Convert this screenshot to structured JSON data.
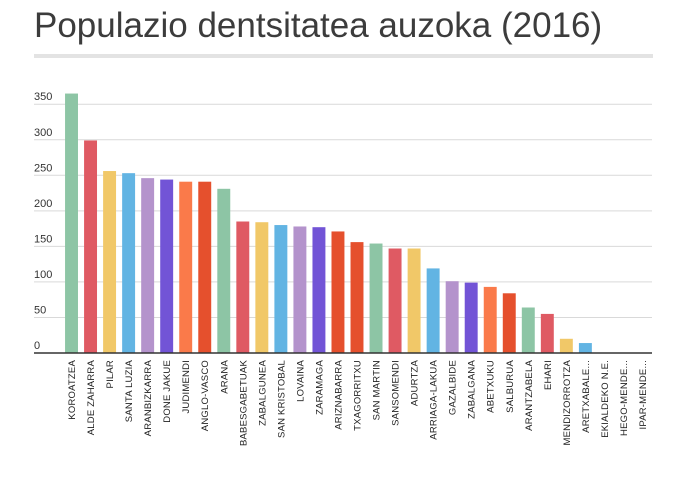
{
  "title": "Populazio dentsitatea auzoka (2016)",
  "chart_data": {
    "type": "bar",
    "title": "Populazio dentsitatea auzoka (2016)",
    "xlabel": "",
    "ylabel": "",
    "ylim": [
      0,
      370
    ],
    "yticks": [
      0,
      50,
      100,
      150,
      200,
      250,
      300,
      350
    ],
    "grid": true,
    "legend": "none",
    "categories": [
      "KOROATZEA",
      "ALDE ZAHARRA",
      "PILAR",
      "SANTA LUZIA",
      "ARANBIZKARRA",
      "DONE JAKUE",
      "JUDIMENDI",
      "ANGLO-VASCO",
      "ARANA",
      "BABESGABETUAK",
      "ZABALGUNEA",
      "SAN KRISTOBAL",
      "LOVAINA",
      "ZARAMAGA",
      "ARIZNABARRA",
      "TXAGORRITXU",
      "SAN MARTIN",
      "SANSOMENDI",
      "ADURTZA",
      "ARRIAGA-LAKUA",
      "GAZALBIDE",
      "ZABALGANA",
      "ABETXUKU",
      "SALBURUA",
      "ARANTZABELA",
      "EHARI",
      "MENDIZORROTZA",
      "ARETXABALE...",
      "EKIALDEKO N.E.",
      "HEGO-MENDE...",
      "IPAR-MENDE..."
    ],
    "values": [
      365,
      299,
      256,
      253,
      246,
      244,
      241,
      241,
      231,
      185,
      184,
      180,
      178,
      177,
      171,
      156,
      154,
      147,
      147,
      119,
      101,
      99,
      93,
      84,
      64,
      55,
      20,
      14,
      0,
      0,
      0
    ],
    "colors": [
      "#8dc5a5",
      "#df5a63",
      "#f1c868",
      "#62b4e3",
      "#b493cc",
      "#7254d6",
      "#fa7a4a",
      "#e5502d",
      "#8dc5a5",
      "#df5a63",
      "#f1c868",
      "#62b4e3",
      "#b493cc",
      "#7254d6",
      "#e5502d",
      "#e5502d",
      "#8dc5a5",
      "#df5a63",
      "#f1c868",
      "#62b4e3",
      "#b493cc",
      "#7254d6",
      "#fa7a4a",
      "#e5502d",
      "#8dc5a5",
      "#df5a63",
      "#f1c868",
      "#62b4e3",
      "#b493cc",
      "#7254d6",
      "#fa7a4a"
    ]
  }
}
